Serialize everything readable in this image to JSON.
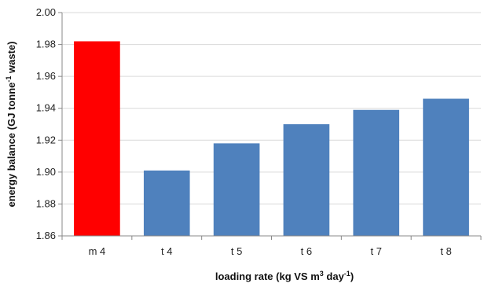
{
  "chart_data": {
    "type": "bar",
    "categories": [
      "m 4",
      "t 4",
      "t 5",
      "t 6",
      "t 7",
      "t 8"
    ],
    "values": [
      1.982,
      1.901,
      1.918,
      1.93,
      1.939,
      1.946
    ],
    "bar_colors": [
      "#ff0000",
      "#4f81bd",
      "#4f81bd",
      "#4f81bd",
      "#4f81bd",
      "#4f81bd"
    ],
    "ylim": [
      1.86,
      2.0
    ],
    "yticks": [
      1.86,
      1.88,
      1.9,
      1.92,
      1.94,
      1.96,
      1.98,
      2.0
    ],
    "ytick_labels": [
      "1.86",
      "1.88",
      "1.90",
      "1.92",
      "1.94",
      "1.96",
      "1.98",
      "2.00"
    ],
    "xlabel": {
      "main": "loading rate (kg VS m",
      "sup1": "3",
      "mid": " day",
      "sup2": "-1",
      "end": ")"
    },
    "ylabel": {
      "main": "energy balance (GJ tonne",
      "sup": "-1",
      "end": " waste)"
    },
    "grid": true,
    "legend": "none"
  }
}
